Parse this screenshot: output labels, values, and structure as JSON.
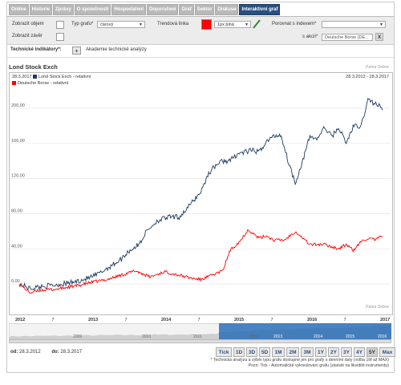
{
  "tabs": [
    "Online",
    "Historie",
    "Zprávy",
    "O společnosti",
    "Hospodaření",
    "Doporučení",
    "Graf",
    "Sektor",
    "Diskuse",
    "Interaktivní graf"
  ],
  "active_tab_index": 9,
  "controls": {
    "show_volume_label": "Zobrazit objem",
    "show_close_label": "Zobrazit závěr",
    "chart_type_label": "Typ grafu*",
    "chart_type_value": "čárový",
    "trend_line_label": "Trendová linka",
    "trend_color": "#ff0000",
    "trend_line_value": "1px plná",
    "compare_index_label": "Porovnat s indexem*",
    "compare_index_value": "",
    "compare_stock_label": "s akcií*",
    "compare_stock_value": "Deutsche Borse (DE...",
    "clear_button": "X"
  },
  "indicators": {
    "label": "Technické indikátory*:",
    "add_button": "+",
    "academy_link": "Akademie technické analýzy"
  },
  "chart": {
    "title": "Lond Stock Exch",
    "watermark_top": "Patria Online",
    "watermark_bottom": "Patria Online",
    "legend_date": "28.3.2017",
    "legend_range": "28.3.2012 - 28.3.2017",
    "series1_label": "Lond Stock Exch - relativní",
    "series1_color": "#1f3a5f",
    "series2_label": "Deutsche Borse - relativní",
    "series2_color": "#ff0000",
    "y_ticks": [
      "200,00",
      "160,00",
      "120,00",
      "80,00",
      "40,00",
      "0,00"
    ],
    "x_ticks": [
      "2012",
      "7",
      "2013",
      "7",
      "2014",
      "7",
      "2015",
      "7",
      "2016",
      "7",
      "2017"
    ],
    "navigator_years": [
      "2009",
      "2010",
      "2011",
      "2012",
      "2013",
      "2014",
      "2015",
      "2016"
    ]
  },
  "chart_data": {
    "type": "line",
    "x_range": [
      "2012-03-28",
      "2017-03-28"
    ],
    "ylim": [
      -20,
      220
    ],
    "series": [
      {
        "name": "Lond Stock Exch - relativní",
        "color": "#1f3a5f",
        "points": [
          [
            0,
            0
          ],
          [
            0.03,
            -5
          ],
          [
            0.06,
            -3
          ],
          [
            0.1,
            -1
          ],
          [
            0.15,
            2
          ],
          [
            0.2,
            8
          ],
          [
            0.22,
            12
          ],
          [
            0.25,
            20
          ],
          [
            0.28,
            28
          ],
          [
            0.3,
            37
          ],
          [
            0.33,
            45
          ],
          [
            0.35,
            60
          ],
          [
            0.38,
            72
          ],
          [
            0.41,
            76
          ],
          [
            0.44,
            76
          ],
          [
            0.46,
            85
          ],
          [
            0.48,
            95
          ],
          [
            0.5,
            105
          ],
          [
            0.52,
            125
          ],
          [
            0.54,
            135
          ],
          [
            0.56,
            140
          ],
          [
            0.58,
            140
          ],
          [
            0.6,
            148
          ],
          [
            0.62,
            150
          ],
          [
            0.64,
            152
          ],
          [
            0.66,
            150
          ],
          [
            0.68,
            162
          ],
          [
            0.7,
            168
          ],
          [
            0.72,
            170
          ],
          [
            0.74,
            140
          ],
          [
            0.76,
            115
          ],
          [
            0.78,
            140
          ],
          [
            0.8,
            168
          ],
          [
            0.82,
            165
          ],
          [
            0.84,
            178
          ],
          [
            0.86,
            168
          ],
          [
            0.88,
            178
          ],
          [
            0.9,
            160
          ],
          [
            0.92,
            180
          ],
          [
            0.94,
            178
          ],
          [
            0.96,
            210
          ],
          [
            0.98,
            205
          ],
          [
            1,
            200
          ]
        ]
      },
      {
        "name": "Deutsche Borse - relativní",
        "color": "#ff0000",
        "points": [
          [
            0,
            0
          ],
          [
            0.03,
            -10
          ],
          [
            0.06,
            -7
          ],
          [
            0.1,
            -6
          ],
          [
            0.13,
            -4
          ],
          [
            0.16,
            -2
          ],
          [
            0.2,
            2
          ],
          [
            0.24,
            5
          ],
          [
            0.28,
            10
          ],
          [
            0.32,
            15
          ],
          [
            0.36,
            8
          ],
          [
            0.4,
            14
          ],
          [
            0.44,
            10
          ],
          [
            0.47,
            7
          ],
          [
            0.5,
            5
          ],
          [
            0.53,
            10
          ],
          [
            0.56,
            15
          ],
          [
            0.58,
            38
          ],
          [
            0.61,
            50
          ],
          [
            0.63,
            62
          ],
          [
            0.66,
            52
          ],
          [
            0.68,
            55
          ],
          [
            0.7,
            50
          ],
          [
            0.73,
            50
          ],
          [
            0.76,
            60
          ],
          [
            0.8,
            45
          ],
          [
            0.84,
            45
          ],
          [
            0.88,
            40
          ],
          [
            0.9,
            45
          ],
          [
            0.92,
            38
          ],
          [
            0.94,
            48
          ],
          [
            0.96,
            52
          ],
          [
            0.98,
            50
          ],
          [
            1,
            55
          ]
        ]
      }
    ]
  },
  "range_buttons": [
    "Tick",
    "1D",
    "3D",
    "5D",
    "1M",
    "2M",
    "3M",
    "1Y",
    "2Y",
    "3Y",
    "4Y",
    "5Y",
    "Max"
  ],
  "active_range": "5Y",
  "date_from_label": "od:",
  "date_from_value": "28.3.2012",
  "date_to_label": "do:",
  "date_to_value": "28.3.2017",
  "notes": [
    "* Technická analýza a výběr typu grafu dostupné jen pro grafy s denními daty (volba 1M až MAX)",
    "Pozn: Tick - Automatické vykreslování grafu (závislé na likviditě instrumentu)"
  ]
}
